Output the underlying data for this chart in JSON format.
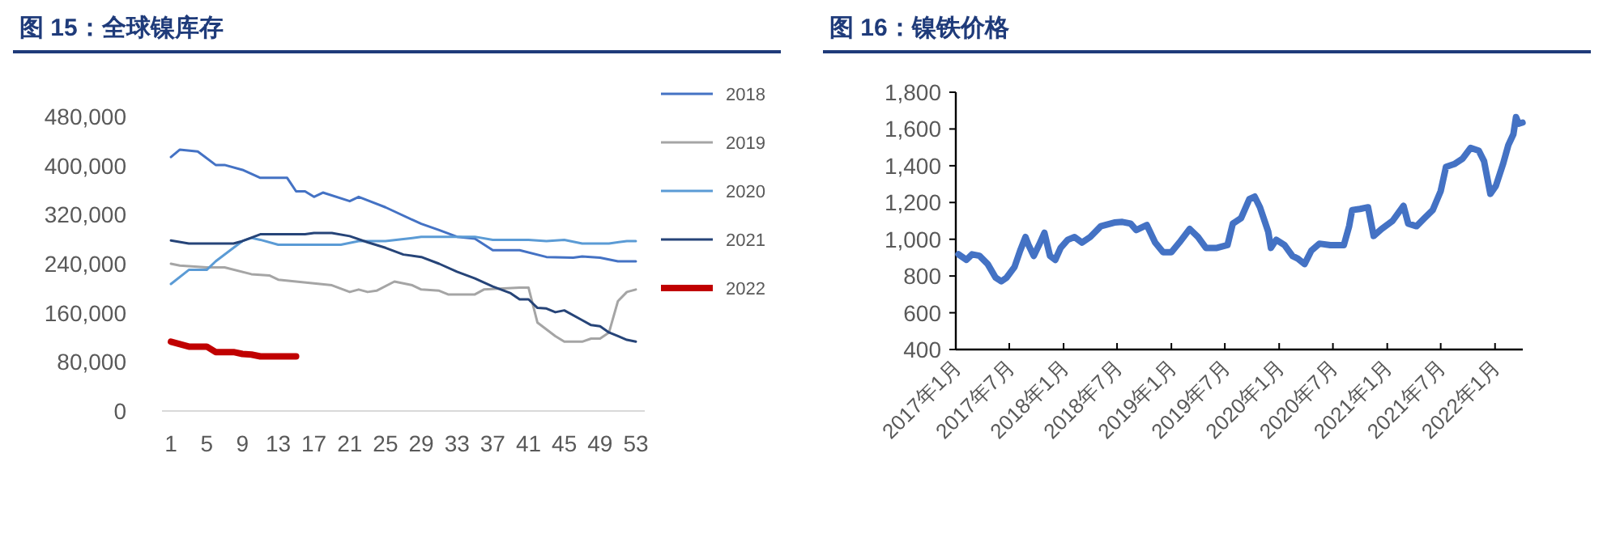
{
  "chart_data": [
    {
      "type": "line",
      "title": "图 15：全球镍库存",
      "xlim": [
        0,
        54
      ],
      "xticks": [
        1,
        5,
        9,
        13,
        17,
        21,
        25,
        29,
        33,
        37,
        41,
        45,
        49,
        53
      ],
      "ylim": [
        0,
        480000
      ],
      "yticks": [
        {
          "value": 0,
          "label": "0"
        },
        {
          "value": 80000,
          "label": "80,000"
        },
        {
          "value": 160000,
          "label": "160,000"
        },
        {
          "value": 240000,
          "label": "240,000"
        },
        {
          "value": 320000,
          "label": "320,000"
        },
        {
          "value": 400000,
          "label": "400,000"
        },
        {
          "value": 480000,
          "label": "480,000"
        }
      ],
      "grid": false,
      "legend": "right",
      "marker": "none",
      "line_style": "solid",
      "series": [
        {
          "name": "2018",
          "color": "#4472c4",
          "x": [
            1,
            2,
            4,
            6,
            7,
            9,
            11,
            14,
            15,
            16,
            17,
            18,
            21,
            22,
            25,
            29,
            31,
            33,
            35,
            37,
            40,
            43,
            46,
            47,
            49,
            51,
            53
          ],
          "values": [
            414000,
            426000,
            423000,
            401000,
            401000,
            393000,
            380000,
            380000,
            358000,
            358000,
            349000,
            356000,
            342000,
            349000,
            332000,
            305000,
            295000,
            284000,
            281000,
            262000,
            262000,
            251000,
            250000,
            252000,
            250000,
            244000,
            244000
          ]
        },
        {
          "name": "2019",
          "color": "#a5a5a5",
          "x": [
            1,
            2,
            5,
            7,
            10,
            12,
            13,
            15,
            17,
            19,
            21,
            22,
            23,
            24,
            26,
            28,
            29,
            31,
            32,
            35,
            36,
            40,
            41,
            42,
            44,
            45,
            47,
            48,
            49,
            50,
            51,
            52,
            53
          ],
          "values": [
            240000,
            237000,
            234000,
            234000,
            223000,
            221000,
            214000,
            211000,
            208000,
            205000,
            194000,
            198000,
            194000,
            196000,
            211000,
            205000,
            198000,
            196000,
            190000,
            190000,
            198000,
            201000,
            201000,
            144000,
            122000,
            113000,
            113000,
            118000,
            118000,
            128000,
            179000,
            194000,
            198000
          ]
        },
        {
          "name": "2020",
          "color": "#5b9bd5",
          "x": [
            1,
            3,
            5,
            6,
            8,
            9,
            10,
            11,
            13,
            16,
            20,
            22,
            25,
            28,
            29,
            31,
            35,
            37,
            41,
            43,
            45,
            47,
            50,
            52,
            53
          ],
          "values": [
            207000,
            230000,
            230000,
            244000,
            266000,
            277000,
            282000,
            279000,
            271000,
            271000,
            271000,
            277000,
            277000,
            282000,
            284000,
            284000,
            284000,
            279000,
            279000,
            277000,
            279000,
            273000,
            273000,
            277000,
            277000
          ]
        },
        {
          "name": "2021",
          "color": "#264478",
          "x": [
            1,
            3,
            8,
            9,
            11,
            16,
            17,
            19,
            21,
            23,
            25,
            27,
            29,
            31,
            33,
            35,
            37,
            39,
            40,
            41,
            42,
            43,
            44,
            45,
            47,
            48,
            49,
            50,
            51,
            52,
            53
          ],
          "values": [
            278000,
            273000,
            273000,
            277000,
            288000,
            288000,
            290000,
            290000,
            285000,
            275000,
            266000,
            255000,
            251000,
            240000,
            227000,
            216000,
            203000,
            192000,
            182000,
            182000,
            168000,
            167000,
            161000,
            164000,
            148000,
            140000,
            138000,
            128000,
            122000,
            116000,
            113000
          ]
        },
        {
          "name": "2022",
          "color": "#c00000",
          "x": [
            1,
            2,
            3,
            4,
            5,
            6,
            7,
            8,
            9,
            10,
            11,
            12,
            13,
            14,
            15
          ],
          "values": [
            113000,
            109000,
            105000,
            105000,
            105000,
            96000,
            96000,
            96000,
            93000,
            92000,
            89000,
            89000,
            89000,
            89000,
            89000
          ]
        }
      ]
    },
    {
      "type": "line",
      "title": "图 16：镍铁价格",
      "xlim": [
        "2017-01-01",
        "2022-04-05"
      ],
      "xticks": [
        {
          "value": "2017-01",
          "label": "2017年1月"
        },
        {
          "value": "2017-07",
          "label": "2017年7月"
        },
        {
          "value": "2018-01",
          "label": "2018年1月"
        },
        {
          "value": "2018-07",
          "label": "2018年7月"
        },
        {
          "value": "2019-01",
          "label": "2019年1月"
        },
        {
          "value": "2019-07",
          "label": "2019年7月"
        },
        {
          "value": "2020-01",
          "label": "2020年1月"
        },
        {
          "value": "2020-07",
          "label": "2020年7月"
        },
        {
          "value": "2021-01",
          "label": "2021年1月"
        },
        {
          "value": "2021-07",
          "label": "2021年7月"
        },
        {
          "value": "2022-01",
          "label": "2022年1月"
        }
      ],
      "ylim": [
        400,
        1800
      ],
      "yticks": [
        400,
        600,
        800,
        {
          "value": 1000,
          "label": "1,000"
        },
        {
          "value": 1200,
          "label": "1,200"
        },
        {
          "value": 1400,
          "label": "1,400"
        },
        {
          "value": 1600,
          "label": "1,600"
        },
        {
          "value": 1800,
          "label": "1,800"
        }
      ],
      "grid": false,
      "legend": false,
      "marker": "none",
      "line_style": "solid",
      "series": [
        {
          "color": "#4472c4",
          "x": [
            "2017-01-10",
            "2017-02-06",
            "2017-02-25",
            "2017-03-22",
            "2017-04-19",
            "2017-05-16",
            "2017-06-04",
            "2017-06-22",
            "2017-07-19",
            "2017-08-07",
            "2017-08-25",
            "2017-09-04",
            "2017-09-22",
            "2017-10-10",
            "2017-10-28",
            "2017-11-16",
            "2017-12-04",
            "2017-12-22",
            "2018-01-15",
            "2018-02-07",
            "2018-03-04",
            "2018-04-01",
            "2018-05-07",
            "2018-06-22",
            "2018-07-19",
            "2018-08-16",
            "2018-09-04",
            "2018-10-10",
            "2018-11-07",
            "2018-12-04",
            "2019-01-01",
            "2019-01-28",
            "2019-03-04",
            "2019-04-01",
            "2019-04-28",
            "2019-06-04",
            "2019-07-10",
            "2019-07-28",
            "2019-08-25",
            "2019-09-22",
            "2019-10-10",
            "2019-10-28",
            "2019-11-25",
            "2019-12-04",
            "2019-12-22",
            "2020-01-19",
            "2020-02-15",
            "2020-03-04",
            "2020-03-27",
            "2020-04-19",
            "2020-05-16",
            "2020-06-22",
            "2020-08-07",
            "2020-08-25",
            "2020-09-04",
            "2020-10-01",
            "2020-10-28",
            "2020-11-16",
            "2020-12-13",
            "2021-01-19",
            "2021-02-25",
            "2021-03-13",
            "2021-04-10",
            "2021-05-07",
            "2021-06-04",
            "2021-07-01",
            "2021-07-19",
            "2021-08-16",
            "2021-09-13",
            "2021-10-10",
            "2021-11-07",
            "2021-11-25",
            "2021-12-16",
            "2022-01-04",
            "2022-01-28",
            "2022-02-15",
            "2022-03-04",
            "2022-03-13",
            "2022-03-22",
            "2022-04-04"
          ],
          "values": [
            918,
            888,
            918,
            910,
            865,
            791,
            771,
            791,
            850,
            938,
            1012,
            970,
            909,
            970,
            1035,
            909,
            888,
            953,
            997,
            1012,
            982,
            1012,
            1071,
            1091,
            1094,
            1085,
            1050,
            1077,
            982,
            929,
            929,
            982,
            1056,
            1012,
            953,
            953,
            968,
            1085,
            1115,
            1218,
            1232,
            1174,
            1041,
            953,
            997,
            968,
            909,
            895,
            865,
            938,
            976,
            968,
            968,
            1071,
            1159,
            1165,
            1174,
            1018,
            1056,
            1100,
            1182,
            1085,
            1071,
            1115,
            1159,
            1262,
            1394,
            1409,
            1438,
            1497,
            1482,
            1424,
            1247,
            1291,
            1409,
            1512,
            1571,
            1665,
            1629,
            1635
          ]
        }
      ]
    }
  ]
}
